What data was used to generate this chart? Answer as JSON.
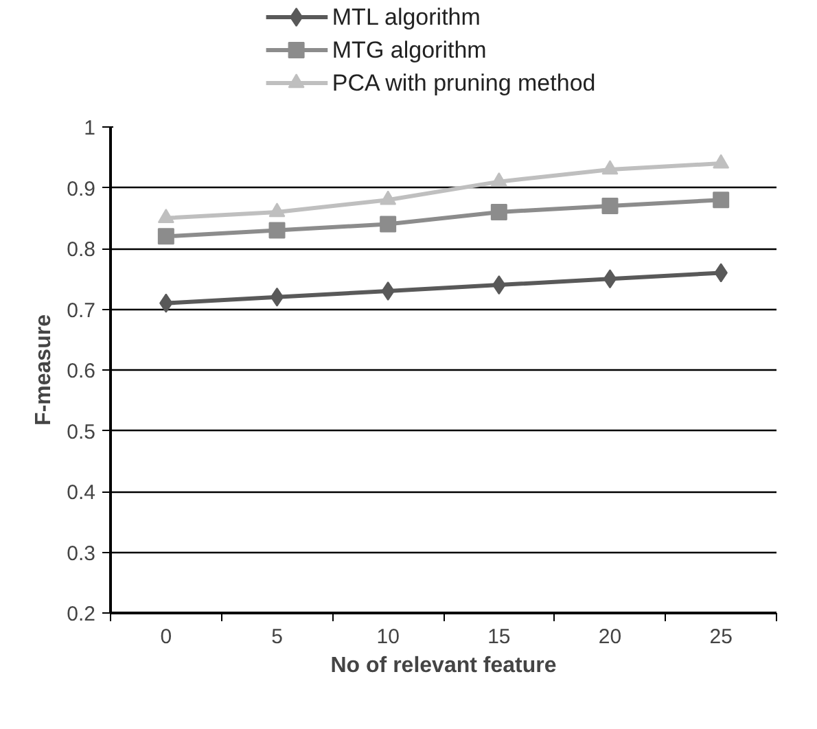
{
  "chart_data": {
    "type": "line",
    "xlabel": "No of relevant feature",
    "ylabel": "F-measure",
    "categories": [
      "0",
      "5",
      "10",
      "15",
      "20",
      "25"
    ],
    "series": [
      {
        "name": "MTL algorithm",
        "color": "#595959",
        "marker": "diamond",
        "values": [
          0.71,
          0.72,
          0.73,
          0.74,
          0.75,
          0.76
        ]
      },
      {
        "name": "MTG algorithm",
        "color": "#8c8c8c",
        "marker": "square",
        "values": [
          0.82,
          0.83,
          0.84,
          0.86,
          0.87,
          0.88
        ]
      },
      {
        "name": "PCA with pruning method",
        "color": "#bfbfbf",
        "marker": "triangle",
        "values": [
          0.85,
          0.86,
          0.88,
          0.91,
          0.93,
          0.94
        ]
      }
    ],
    "ylim": [
      0.2,
      1
    ],
    "yticks": [
      0.2,
      0.3,
      0.4,
      0.5,
      0.6,
      0.7,
      0.8,
      0.9,
      1
    ],
    "grid": "y",
    "legend": "top",
    "line_style": "solid"
  }
}
